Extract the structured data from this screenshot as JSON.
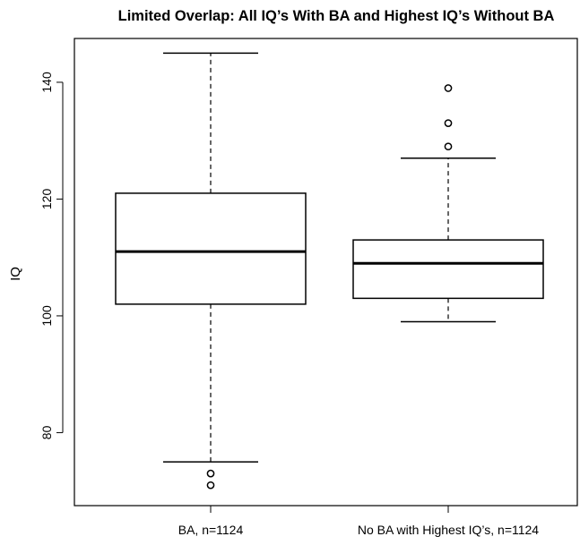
{
  "chart_data": {
    "type": "box",
    "title": "Limited Overlap: All IQ’s With BA and Highest IQ’s Without BA",
    "xlabel": "",
    "ylabel": "IQ",
    "ylim": [
      67.5,
      147.5
    ],
    "yticks": [
      80,
      100,
      120,
      140
    ],
    "grid": false,
    "categories": [
      "BA, n=1124",
      "No BA with Highest IQ’s, n=1124"
    ],
    "series": [
      {
        "lower_whisker": 75,
        "q1": 102,
        "median": 111,
        "q3": 121,
        "upper_whisker": 145,
        "outliers": [
          73,
          71
        ]
      },
      {
        "lower_whisker": 99,
        "q1": 103,
        "median": 109,
        "q3": 113,
        "upper_whisker": 127,
        "outliers": [
          129,
          133,
          139
        ]
      }
    ]
  }
}
